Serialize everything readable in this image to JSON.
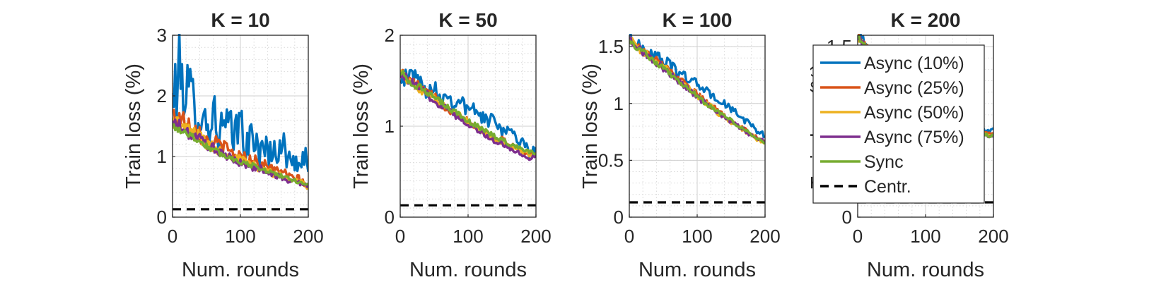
{
  "chart_data": [
    {
      "type": "line",
      "title": "K = 10",
      "xlabel": "Num. rounds",
      "ylabel": "Train loss (%)",
      "xlim": [
        0,
        200
      ],
      "ylim": [
        0,
        3
      ],
      "xticks": [
        0,
        100,
        200
      ],
      "yticks": [
        0,
        1,
        2,
        3
      ],
      "ytick_labels": [
        "0",
        "1",
        "2",
        "3"
      ],
      "grid": true,
      "series": [
        {
          "name": "Async (10%)",
          "x": [
            0,
            10,
            20,
            30,
            40,
            50,
            60,
            70,
            80,
            90,
            100,
            110,
            120,
            130,
            140,
            150,
            160,
            170,
            180,
            190,
            200
          ],
          "y": [
            1.9,
            2.4,
            2.1,
            1.9,
            1.8,
            1.5,
            1.7,
            1.4,
            1.5,
            1.3,
            1.6,
            1.1,
            1.4,
            1.0,
            1.2,
            1.0,
            1.3,
            0.9,
            1.0,
            0.8,
            1.0
          ]
        },
        {
          "name": "Async (25%)",
          "x": [
            0,
            10,
            20,
            30,
            40,
            50,
            60,
            70,
            80,
            90,
            100,
            110,
            120,
            130,
            140,
            150,
            160,
            170,
            180,
            190,
            200
          ],
          "y": [
            1.7,
            1.65,
            1.55,
            1.5,
            1.4,
            1.25,
            1.2,
            1.2,
            1.1,
            1.05,
            1.0,
            0.95,
            0.95,
            0.85,
            0.85,
            0.75,
            0.8,
            0.65,
            0.65,
            0.6,
            0.5
          ]
        },
        {
          "name": "Async (50%)",
          "x": [
            0,
            10,
            20,
            30,
            40,
            50,
            60,
            70,
            80,
            90,
            100,
            110,
            120,
            130,
            140,
            150,
            160,
            170,
            180,
            190,
            200
          ],
          "y": [
            1.6,
            1.55,
            1.45,
            1.4,
            1.35,
            1.2,
            1.15,
            1.1,
            1.05,
            1.0,
            0.95,
            0.9,
            0.85,
            0.8,
            0.8,
            0.7,
            0.7,
            0.65,
            0.6,
            0.6,
            0.45
          ]
        },
        {
          "name": "Async (75%)",
          "x": [
            0,
            10,
            20,
            30,
            40,
            50,
            60,
            70,
            80,
            90,
            100,
            110,
            120,
            130,
            140,
            150,
            160,
            170,
            180,
            190,
            200
          ],
          "y": [
            1.55,
            1.5,
            1.4,
            1.35,
            1.3,
            1.2,
            1.15,
            1.05,
            1.0,
            0.95,
            0.9,
            0.85,
            0.8,
            0.8,
            0.75,
            0.7,
            0.65,
            0.6,
            0.6,
            0.55,
            0.5
          ]
        },
        {
          "name": "Sync",
          "x": [
            0,
            10,
            20,
            30,
            40,
            50,
            60,
            70,
            80,
            90,
            100,
            110,
            120,
            130,
            140,
            150,
            160,
            170,
            180,
            190,
            200
          ],
          "y": [
            1.5,
            1.45,
            1.4,
            1.32,
            1.25,
            1.18,
            1.1,
            1.05,
            1.0,
            0.96,
            0.92,
            0.88,
            0.84,
            0.8,
            0.76,
            0.72,
            0.68,
            0.64,
            0.6,
            0.57,
            0.54
          ]
        },
        {
          "name": "Centr.",
          "x": [
            0,
            200
          ],
          "y": [
            0.13,
            0.13
          ]
        }
      ]
    },
    {
      "type": "line",
      "title": "K = 50",
      "xlabel": "Num. rounds",
      "ylabel": "Train loss (%)",
      "xlim": [
        0,
        200
      ],
      "ylim": [
        0,
        2
      ],
      "xticks": [
        0,
        100,
        200
      ],
      "yticks": [
        0,
        1,
        2
      ],
      "ytick_labels": [
        "0",
        "1",
        "2"
      ],
      "grid": true,
      "series": [
        {
          "name": "Async (10%)",
          "x": [
            0,
            10,
            20,
            30,
            40,
            50,
            60,
            70,
            80,
            90,
            100,
            110,
            120,
            130,
            140,
            150,
            160,
            170,
            180,
            190,
            200
          ],
          "y": [
            1.6,
            1.5,
            1.6,
            1.45,
            1.4,
            1.45,
            1.3,
            1.35,
            1.25,
            1.3,
            1.15,
            1.2,
            1.1,
            1.05,
            1.1,
            0.95,
            1.0,
            0.85,
            0.85,
            0.7,
            0.75
          ]
        },
        {
          "name": "Async (25%)",
          "x": [
            0,
            10,
            20,
            30,
            40,
            50,
            60,
            70,
            80,
            90,
            100,
            110,
            120,
            130,
            140,
            150,
            160,
            170,
            180,
            190,
            200
          ],
          "y": [
            1.6,
            1.52,
            1.48,
            1.42,
            1.36,
            1.32,
            1.25,
            1.2,
            1.15,
            1.12,
            1.05,
            1.0,
            0.97,
            0.92,
            0.88,
            0.85,
            0.8,
            0.77,
            0.73,
            0.7,
            0.7
          ]
        },
        {
          "name": "Async (50%)",
          "x": [
            0,
            10,
            20,
            30,
            40,
            50,
            60,
            70,
            80,
            90,
            100,
            110,
            120,
            130,
            140,
            150,
            160,
            170,
            180,
            190,
            200
          ],
          "y": [
            1.6,
            1.52,
            1.47,
            1.41,
            1.35,
            1.3,
            1.24,
            1.19,
            1.14,
            1.1,
            1.04,
            0.99,
            0.95,
            0.9,
            0.86,
            0.82,
            0.78,
            0.75,
            0.72,
            0.69,
            0.68
          ]
        },
        {
          "name": "Async (75%)",
          "x": [
            0,
            10,
            20,
            30,
            40,
            50,
            60,
            70,
            80,
            90,
            100,
            110,
            120,
            130,
            140,
            150,
            160,
            170,
            180,
            190,
            200
          ],
          "y": [
            1.6,
            1.51,
            1.46,
            1.4,
            1.34,
            1.29,
            1.23,
            1.18,
            1.13,
            1.08,
            1.03,
            0.98,
            0.93,
            0.88,
            0.84,
            0.8,
            0.76,
            0.72,
            0.68,
            0.65,
            0.68
          ]
        },
        {
          "name": "Sync",
          "x": [
            0,
            10,
            20,
            30,
            40,
            50,
            60,
            70,
            80,
            90,
            100,
            110,
            120,
            130,
            140,
            150,
            160,
            170,
            180,
            190,
            200
          ],
          "y": [
            1.6,
            1.52,
            1.47,
            1.42,
            1.36,
            1.31,
            1.26,
            1.21,
            1.16,
            1.11,
            1.06,
            1.01,
            0.97,
            0.93,
            0.89,
            0.85,
            0.81,
            0.78,
            0.75,
            0.72,
            0.7
          ]
        },
        {
          "name": "Centr.",
          "x": [
            0,
            200
          ],
          "y": [
            0.13,
            0.13
          ]
        }
      ]
    },
    {
      "type": "line",
      "title": "K = 100",
      "xlabel": "Num. rounds",
      "ylabel": "Train loss (%)",
      "xlim": [
        0,
        200
      ],
      "ylim": [
        0,
        1.6
      ],
      "xticks": [
        0,
        100,
        200
      ],
      "yticks": [
        0,
        0.5,
        1,
        1.5
      ],
      "ytick_labels": [
        "0",
        "0.5",
        "1",
        "1.5"
      ],
      "grid": true,
      "series": [
        {
          "name": "Async (10%)",
          "x": [
            0,
            10,
            20,
            30,
            40,
            50,
            60,
            70,
            80,
            90,
            100,
            110,
            120,
            130,
            140,
            150,
            160,
            170,
            180,
            190,
            200
          ],
          "y": [
            1.6,
            1.52,
            1.48,
            1.44,
            1.42,
            1.38,
            1.34,
            1.28,
            1.25,
            1.2,
            1.18,
            1.12,
            1.08,
            1.03,
            1.0,
            0.95,
            0.9,
            0.85,
            0.82,
            0.75,
            0.72
          ]
        },
        {
          "name": "Async (25%)",
          "x": [
            0,
            10,
            20,
            30,
            40,
            50,
            60,
            70,
            80,
            90,
            100,
            110,
            120,
            130,
            140,
            150,
            160,
            170,
            180,
            190,
            200
          ],
          "y": [
            1.58,
            1.51,
            1.46,
            1.42,
            1.38,
            1.33,
            1.28,
            1.23,
            1.18,
            1.13,
            1.08,
            1.03,
            0.98,
            0.94,
            0.89,
            0.85,
            0.81,
            0.77,
            0.73,
            0.69,
            0.68
          ]
        },
        {
          "name": "Async (50%)",
          "x": [
            0,
            10,
            20,
            30,
            40,
            50,
            60,
            70,
            80,
            90,
            100,
            110,
            120,
            130,
            140,
            150,
            160,
            170,
            180,
            190,
            200
          ],
          "y": [
            1.57,
            1.5,
            1.45,
            1.41,
            1.37,
            1.32,
            1.27,
            1.22,
            1.17,
            1.12,
            1.07,
            1.02,
            0.97,
            0.92,
            0.88,
            0.84,
            0.8,
            0.76,
            0.72,
            0.68,
            0.66
          ]
        },
        {
          "name": "Async (75%)",
          "x": [
            0,
            10,
            20,
            30,
            40,
            50,
            60,
            70,
            80,
            90,
            100,
            110,
            120,
            130,
            140,
            150,
            160,
            170,
            180,
            190,
            200
          ],
          "y": [
            1.57,
            1.5,
            1.45,
            1.4,
            1.36,
            1.31,
            1.26,
            1.21,
            1.16,
            1.11,
            1.06,
            1.01,
            0.96,
            0.92,
            0.88,
            0.84,
            0.8,
            0.76,
            0.72,
            0.68,
            0.67
          ]
        },
        {
          "name": "Sync",
          "x": [
            0,
            10,
            20,
            30,
            40,
            50,
            60,
            70,
            80,
            90,
            100,
            110,
            120,
            130,
            140,
            150,
            160,
            170,
            180,
            190,
            200
          ],
          "y": [
            1.56,
            1.5,
            1.45,
            1.41,
            1.36,
            1.31,
            1.26,
            1.21,
            1.16,
            1.11,
            1.06,
            1.01,
            0.97,
            0.93,
            0.89,
            0.85,
            0.81,
            0.77,
            0.73,
            0.69,
            0.66
          ]
        },
        {
          "name": "Centr.",
          "x": [
            0,
            200
          ],
          "y": [
            0.13,
            0.13
          ]
        }
      ]
    },
    {
      "type": "line",
      "title": "K = 200",
      "xlabel": "Num. rounds",
      "ylabel": "Train loss (%)",
      "xlim": [
        0,
        200
      ],
      "ylim": [
        0,
        1.6
      ],
      "xticks": [
        0,
        100,
        200
      ],
      "yticks": [
        0,
        1.5
      ],
      "ytick_labels": [
        "0",
        "1.5"
      ],
      "grid": true,
      "series": [
        {
          "name": "Async (10%)",
          "x": [
            0,
            10,
            20,
            30,
            40,
            50,
            60,
            70,
            80,
            90,
            100,
            110,
            120,
            130,
            140,
            150,
            160,
            170,
            180,
            190,
            200
          ],
          "y": [
            1.6,
            1.54,
            1.49,
            1.45,
            1.41,
            1.36,
            1.31,
            1.27,
            1.22,
            1.17,
            1.12,
            1.07,
            1.02,
            0.98,
            0.94,
            0.9,
            0.86,
            0.82,
            0.78,
            0.74,
            0.76
          ]
        },
        {
          "name": "Async (25%)",
          "x": [
            0,
            10,
            20,
            30,
            40,
            50,
            60,
            70,
            80,
            90,
            100,
            110,
            120,
            130,
            140,
            150,
            160,
            170,
            180,
            190,
            200
          ],
          "y": [
            1.59,
            1.52,
            1.47,
            1.43,
            1.39,
            1.34,
            1.29,
            1.25,
            1.2,
            1.15,
            1.1,
            1.05,
            1.01,
            0.97,
            0.93,
            0.89,
            0.85,
            0.81,
            0.77,
            0.73,
            0.72
          ]
        },
        {
          "name": "Async (50%)",
          "x": [
            0,
            10,
            20,
            30,
            40,
            50,
            60,
            70,
            80,
            90,
            100,
            110,
            120,
            130,
            140,
            150,
            160,
            170,
            180,
            190,
            200
          ],
          "y": [
            1.58,
            1.51,
            1.46,
            1.42,
            1.38,
            1.33,
            1.28,
            1.24,
            1.19,
            1.14,
            1.09,
            1.04,
            1.0,
            0.96,
            0.92,
            0.88,
            0.84,
            0.8,
            0.76,
            0.72,
            0.71
          ]
        },
        {
          "name": "Async (75%)",
          "x": [
            0,
            10,
            20,
            30,
            40,
            50,
            60,
            70,
            80,
            90,
            100,
            110,
            120,
            130,
            140,
            150,
            160,
            170,
            180,
            190,
            200
          ],
          "y": [
            1.58,
            1.51,
            1.46,
            1.42,
            1.37,
            1.32,
            1.27,
            1.23,
            1.18,
            1.13,
            1.08,
            1.03,
            0.99,
            0.95,
            0.91,
            0.87,
            0.83,
            0.79,
            0.75,
            0.71,
            0.7
          ]
        },
        {
          "name": "Sync",
          "x": [
            0,
            10,
            20,
            30,
            40,
            50,
            60,
            70,
            80,
            90,
            100,
            110,
            120,
            130,
            140,
            150,
            160,
            170,
            180,
            190,
            200
          ],
          "y": [
            1.58,
            1.51,
            1.46,
            1.42,
            1.37,
            1.32,
            1.27,
            1.23,
            1.18,
            1.13,
            1.08,
            1.03,
            0.99,
            0.95,
            0.91,
            0.87,
            0.83,
            0.79,
            0.75,
            0.72,
            0.71
          ]
        },
        {
          "name": "Centr.",
          "x": [
            0,
            200
          ],
          "y": [
            0.13,
            0.13
          ]
        }
      ]
    }
  ],
  "legend": {
    "placement": "top-left of fourth panel, overlapping",
    "entries": [
      {
        "label": "Async (10%)",
        "color": "#0072BD",
        "dash": false
      },
      {
        "label": "Async (25%)",
        "color": "#D95319",
        "dash": false
      },
      {
        "label": "Async (50%)",
        "color": "#EDB120",
        "dash": false
      },
      {
        "label": "Async (75%)",
        "color": "#7E2F8E",
        "dash": false
      },
      {
        "label": "Sync",
        "color": "#77AC30",
        "dash": false
      },
      {
        "label": "Centr.",
        "color": "#000000",
        "dash": true
      }
    ]
  }
}
